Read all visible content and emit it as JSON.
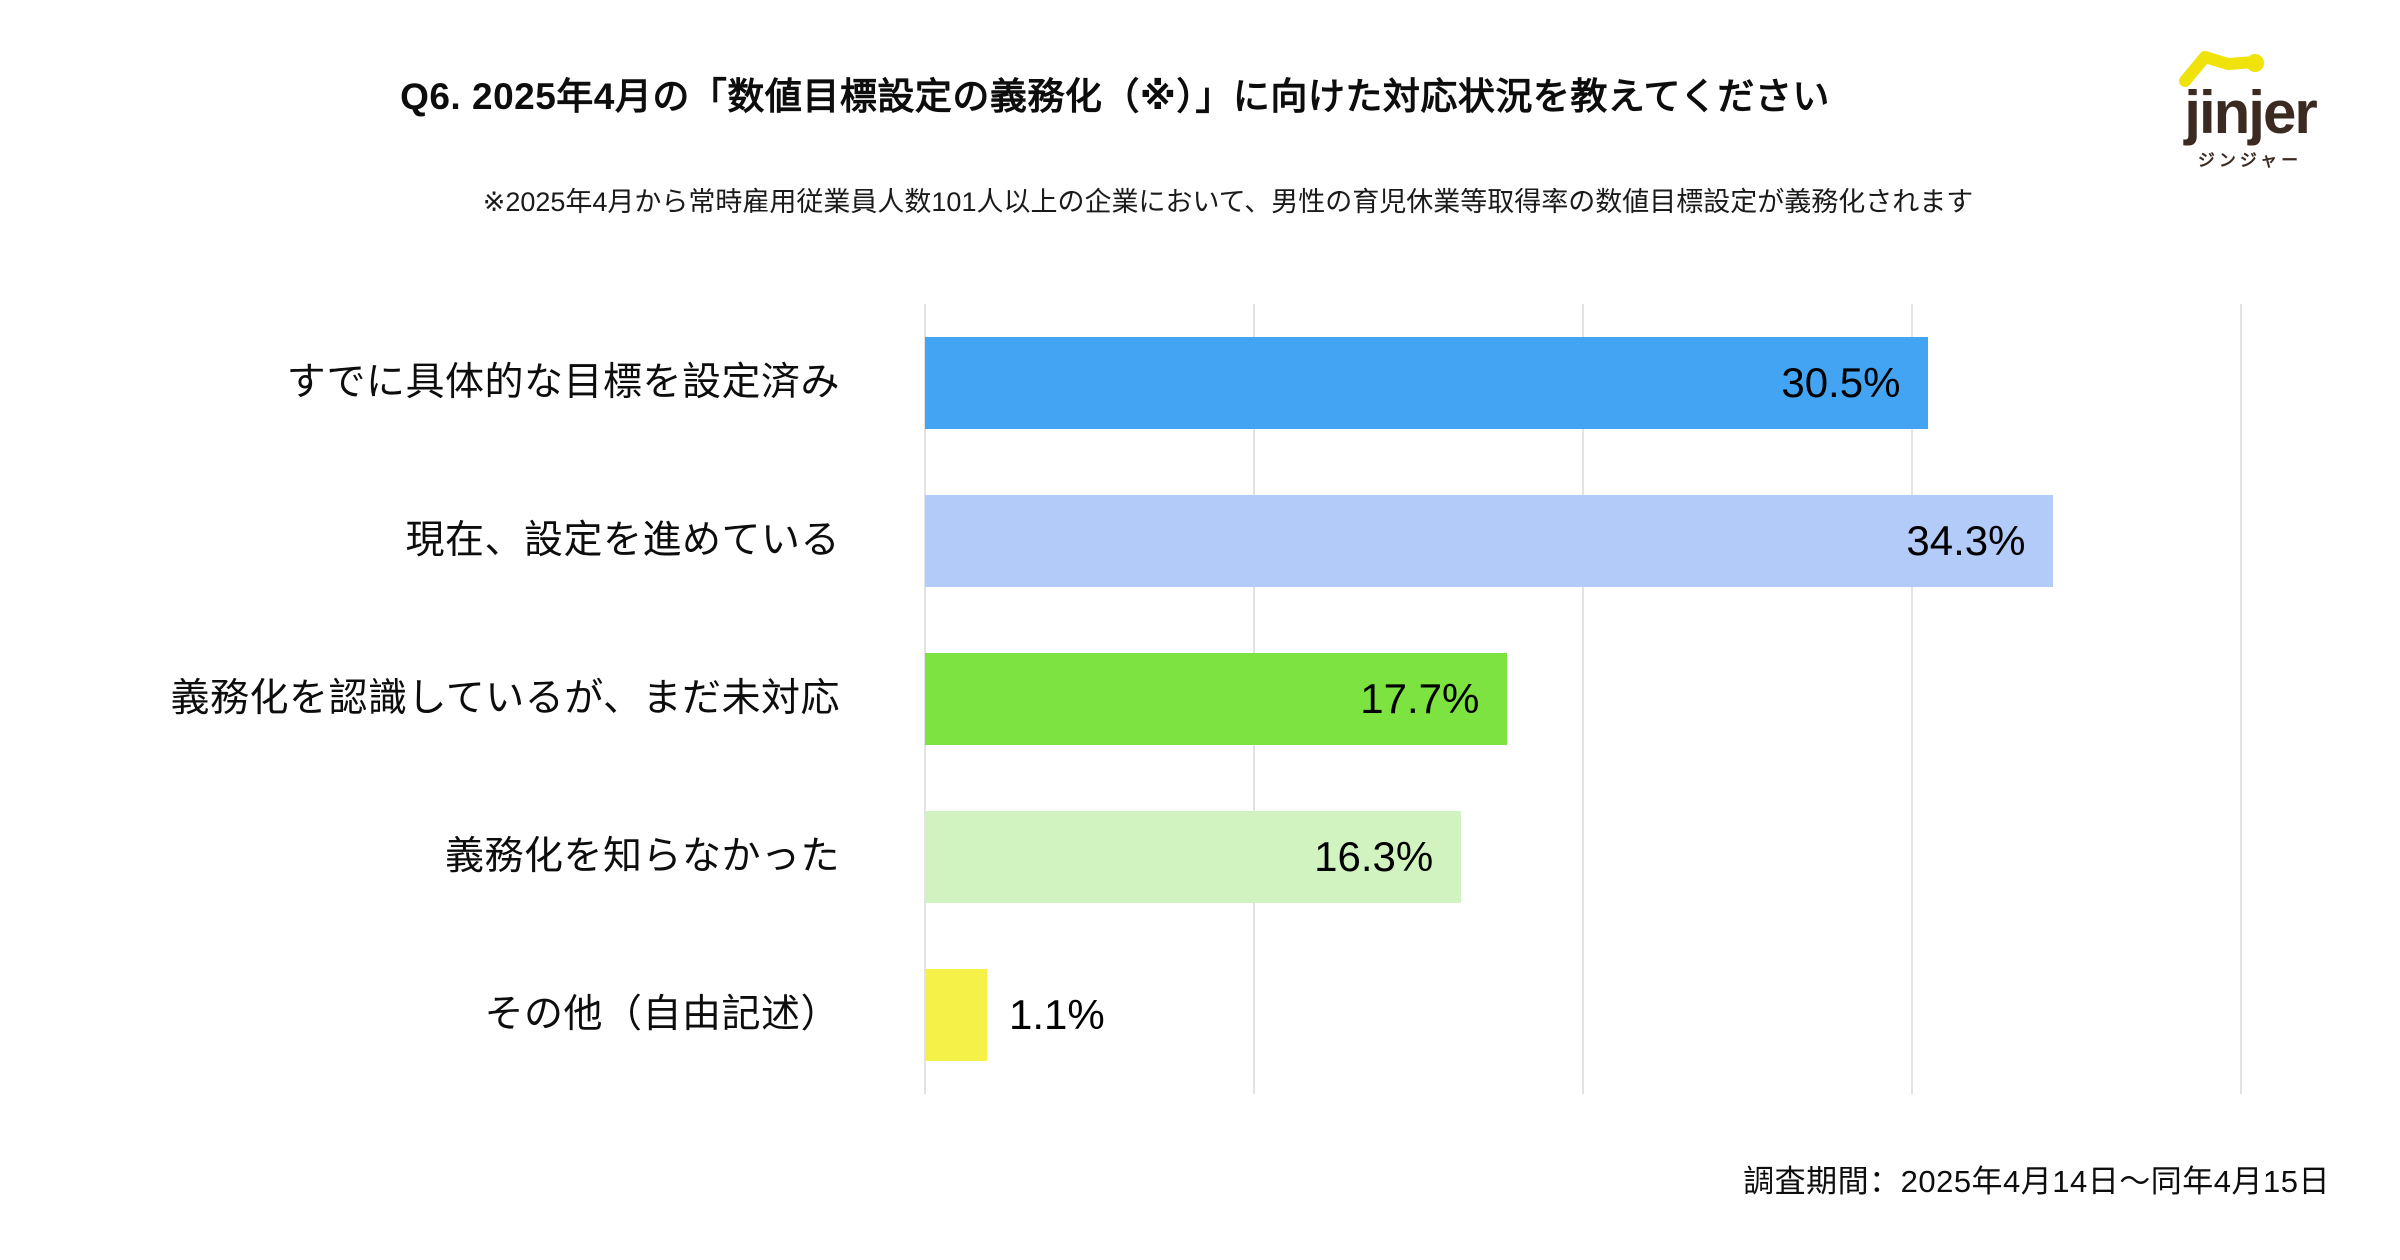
{
  "header": {
    "title": "Q6. 2025年4月の「数値目標設定の義務化（※）」に向けた対応状況を教えてください",
    "subtitle": "※2025年4月から常時雇用従業員人数101人以上の企業において、男性の育児休業等取得率の数値目標設定が義務化されます"
  },
  "logo": {
    "wordmark": "jinjer",
    "katakana": "ジンジャー",
    "yellow": "#efe30b",
    "dark": "#3b2a22"
  },
  "footer": {
    "survey_period": "調査期間：2025年4月14日〜同年4月15日"
  },
  "chart_data": {
    "type": "bar",
    "orientation": "horizontal",
    "title": "Q6. 2025年4月の「数値目標設定の義務化（※）」に向けた対応状況を教えてください",
    "categories": [
      "すでに具体的な目標を設定済み",
      "現在、設定を進めている",
      "義務化を認識しているが、まだ未対応",
      "義務化を知らなかった",
      "その他（自由記述）"
    ],
    "values": [
      30.5,
      34.3,
      17.7,
      16.3,
      1.1
    ],
    "value_labels": [
      "30.5%",
      "34.3%",
      "17.7%",
      "16.3%",
      "1.1%"
    ],
    "bar_colors": [
      "#42a4f2",
      "#b3cbf8",
      "#7de340",
      "#d0f3bf",
      "#f5f149"
    ],
    "value_label_positions": [
      "inside",
      "inside",
      "inside",
      "inside",
      "outside"
    ],
    "xlim": [
      0,
      40
    ],
    "gridline_step": 10,
    "grid": "vertical",
    "gridline_color": "#e3e3e3",
    "legend": "none",
    "xlabel": "",
    "ylabel": ""
  }
}
